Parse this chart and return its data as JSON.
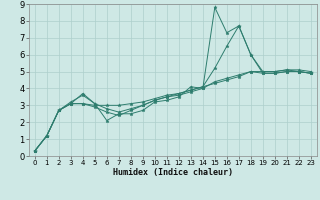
{
  "xlabel": "Humidex (Indice chaleur)",
  "ylabel": "",
  "xlim": [
    -0.5,
    23.5
  ],
  "ylim": [
    0,
    9
  ],
  "xticks": [
    0,
    1,
    2,
    3,
    4,
    5,
    6,
    7,
    8,
    9,
    10,
    11,
    12,
    13,
    14,
    15,
    16,
    17,
    18,
    19,
    20,
    21,
    22,
    23
  ],
  "yticks": [
    0,
    1,
    2,
    3,
    4,
    5,
    6,
    7,
    8,
    9
  ],
  "background_color": "#cee8e5",
  "grid_color": "#aecfcc",
  "line_color": "#2e7d6e",
  "lines": [
    {
      "x": [
        0,
        1,
        2,
        3,
        4,
        5,
        6,
        7,
        8,
        9,
        10,
        11,
        12,
        13,
        14,
        15,
        16,
        17,
        18,
        19,
        20,
        21,
        22,
        23
      ],
      "y": [
        0.3,
        1.2,
        2.7,
        3.1,
        3.7,
        3.1,
        2.1,
        2.5,
        2.5,
        2.7,
        3.2,
        3.3,
        3.5,
        4.1,
        4.0,
        8.8,
        7.3,
        7.7,
        6.0,
        4.9,
        4.9,
        5.0,
        5.0,
        4.9
      ]
    },
    {
      "x": [
        0,
        1,
        2,
        3,
        4,
        5,
        6,
        7,
        8,
        9,
        10,
        11,
        12,
        13,
        14,
        15,
        16,
        17,
        18,
        19,
        20,
        21,
        22,
        23
      ],
      "y": [
        0.3,
        1.2,
        2.7,
        3.1,
        3.1,
        3.0,
        3.0,
        3.0,
        3.1,
        3.2,
        3.4,
        3.6,
        3.7,
        3.9,
        4.1,
        4.3,
        4.5,
        4.7,
        5.0,
        5.0,
        5.0,
        5.1,
        5.1,
        5.0
      ]
    },
    {
      "x": [
        0,
        1,
        2,
        3,
        4,
        5,
        6,
        7,
        8,
        9,
        10,
        11,
        12,
        13,
        14,
        15,
        16,
        17,
        18,
        19,
        20,
        21,
        22,
        23
      ],
      "y": [
        0.3,
        1.2,
        2.7,
        3.1,
        3.1,
        2.9,
        2.6,
        2.4,
        2.7,
        3.0,
        3.3,
        3.5,
        3.6,
        3.8,
        4.0,
        4.4,
        4.6,
        4.8,
        5.0,
        4.9,
        4.9,
        5.0,
        5.0,
        4.9
      ]
    },
    {
      "x": [
        0,
        1,
        2,
        3,
        4,
        5,
        6,
        7,
        8,
        9,
        10,
        11,
        12,
        13,
        14,
        15,
        16,
        17,
        18,
        19,
        20,
        21,
        22,
        23
      ],
      "y": [
        0.3,
        1.2,
        2.7,
        3.2,
        3.6,
        3.1,
        2.8,
        2.6,
        2.8,
        3.0,
        3.3,
        3.5,
        3.7,
        3.9,
        4.1,
        5.2,
        6.5,
        7.7,
        6.0,
        5.0,
        5.0,
        5.1,
        5.0,
        4.9
      ]
    }
  ]
}
